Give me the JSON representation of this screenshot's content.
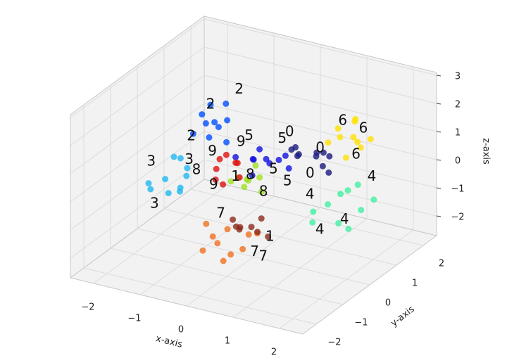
{
  "chart_data": {
    "type": "scatter3d",
    "xlabel": "x-axis",
    "ylabel": "y-axis",
    "zlabel": "z-axis",
    "xlim": [
      -2.5,
      2.5
    ],
    "ylim": [
      -2.5,
      2.5
    ],
    "zlim": [
      -2.7,
      3.1
    ],
    "xticks": [
      {
        "value": -2,
        "label": "−2"
      },
      {
        "value": -1,
        "label": "−1"
      },
      0,
      1,
      2
    ],
    "yticks": [
      {
        "value": -2,
        "label": "−2"
      },
      {
        "value": -1,
        "label": "−1"
      },
      0,
      1,
      2
    ],
    "zticks": [
      {
        "value": -2,
        "label": "−2"
      },
      {
        "value": -1,
        "label": "−1"
      },
      0,
      1,
      2,
      3
    ],
    "grid": true,
    "series": [
      {
        "color": "#ffe000",
        "x": [
          1.0,
          1.4,
          1.2,
          0.9,
          1.5,
          1.3,
          1.1,
          1.6,
          0.8,
          1.2
        ],
        "y": [
          1.5,
          1.3,
          1.8,
          1.6,
          1.4,
          1.2,
          1.9,
          1.6,
          1.4,
          1.7
        ],
        "z": [
          0.9,
          1.2,
          0.6,
          1.1,
          0.8,
          0.5,
          1.3,
          1.0,
          0.7,
          1.4
        ]
      },
      {
        "color": "#1a1a80",
        "x": [
          0.4,
          0.9,
          0.6,
          1.0,
          0.5,
          0.8,
          0.3,
          0.7,
          1.1,
          0.6
        ],
        "y": [
          1.0,
          0.8,
          1.3,
          1.1,
          0.7,
          1.2,
          0.9,
          1.4,
          0.9,
          0.6
        ],
        "z": [
          0.4,
          0.8,
          0.2,
          0.5,
          0.9,
          0.0,
          0.6,
          0.3,
          0.1,
          0.7
        ]
      },
      {
        "color": "#0050ff",
        "x": [
          -1.6,
          -1.3,
          -1.5,
          -1.2,
          -1.7,
          -1.4,
          -1.1,
          -1.8,
          -1.3,
          -1.5
        ],
        "y": [
          1.0,
          0.8,
          1.3,
          1.1,
          0.7,
          1.4,
          0.9,
          1.2,
          0.6,
          1.0
        ],
        "z": [
          0.7,
          1.0,
          0.4,
          0.9,
          0.5,
          1.2,
          0.3,
          0.8,
          0.6,
          1.4
        ]
      },
      {
        "color": "#20b8f0",
        "x": [
          -1.9,
          -1.6,
          -2.1,
          -1.5,
          -1.8,
          -2.2,
          -1.4,
          -1.7,
          -2.0,
          -1.6
        ],
        "y": [
          0,
          0.3,
          -0.2,
          0.1,
          0.4,
          -0.1,
          -0.3,
          0.2,
          0.5,
          -0.4
        ],
        "z": [
          -0.7,
          -0.4,
          -1.0,
          -0.5,
          -0.2,
          -0.9,
          -0.6,
          -1.2,
          -0.3,
          -0.8
        ]
      },
      {
        "color": "#40f0a0",
        "x": [
          1.6,
          2.0,
          1.8,
          2.2,
          1.5,
          1.9,
          2.1,
          1.7,
          2.3,
          1.4
        ],
        "y": [
          0.0,
          -0.3,
          0.4,
          0.2,
          -0.4,
          0.6,
          -0.1,
          0.3,
          0.5,
          -0.2
        ],
        "z": [
          -0.2,
          -0.5,
          0.1,
          -0.3,
          -0.6,
          0.2,
          -0.8,
          0.0,
          -0.1,
          -0.4
        ]
      },
      {
        "color": "#a0e020",
        "x": [
          -0.5,
          -0.2,
          -0.4,
          -0.1,
          -0.6,
          -0.3,
          0.0,
          -0.2
        ],
        "y": [
          0.3,
          0.1,
          0.5,
          0.4,
          0.2,
          0.6,
          0.3,
          0.0
        ],
        "z": [
          -0.3,
          -0.1,
          -0.5,
          -0.2,
          -0.4,
          0.0,
          -0.6,
          -0.3
        ]
      },
      {
        "color": "#1010e0",
        "x": [
          -0.3,
          0.1,
          -0.4,
          0.2,
          -0.1,
          0.3,
          -0.5,
          0.0,
          0.4,
          -0.2
        ],
        "y": [
          0.5,
          0.3,
          0.7,
          0.6,
          0.4,
          0.8,
          0.2,
          0.6,
          0.5,
          0.3
        ],
        "z": [
          0.3,
          0.6,
          0.1,
          0.4,
          0.8,
          0.0,
          0.5,
          0.2,
          0.7,
          -0.1
        ]
      },
      {
        "color": "#e01010",
        "x": [
          -0.8,
          -0.5,
          -0.7,
          -0.4,
          -0.9,
          -0.6,
          -0.3,
          -0.7
        ],
        "y": [
          0,
          0.2,
          -0.2,
          0.1,
          0.3,
          -0.1,
          0.0,
          0.2
        ],
        "z": [
          0.1,
          0.3,
          -0.1,
          0.4,
          0.2,
          -0.3,
          0.0,
          0.5
        ]
      },
      {
        "color": "#f07020",
        "x": [
          -0.3,
          0.2,
          -0.1,
          0.4,
          -0.5,
          0.1,
          0.3,
          -0.2,
          0.6,
          -0.4
        ],
        "y": [
          -1.0,
          -1.2,
          -0.8,
          -1.1,
          -0.9,
          -1.3,
          -0.7,
          -1.0,
          -0.9,
          -1.2
        ],
        "z": [
          -1.4,
          -1.7,
          -1.2,
          -1.5,
          -1.1,
          -1.9,
          -1.3,
          -1.6,
          -1.0,
          -1.8
        ]
      },
      {
        "color": "#8b2a1a",
        "x": [
          0.0,
          0.3,
          -0.2,
          0.4,
          0.1,
          0.6,
          -0.1,
          0.2
        ],
        "y": [
          -0.5,
          -0.6,
          -0.3,
          -0.4,
          -0.7,
          -0.5,
          -0.6,
          -0.2
        ],
        "z": [
          -1.3,
          -1.1,
          -1.5,
          -0.9,
          -1.2,
          -1.4,
          -1.0,
          -1.6
        ]
      }
    ],
    "annotations": [
      {
        "text": "6",
        "x": 1.0,
        "y": 1.6,
        "z": 1.4
      },
      {
        "text": "6",
        "x": 1.5,
        "y": 1.5,
        "z": 1.4
      },
      {
        "text": "6",
        "x": 1.4,
        "y": 1.4,
        "z": 0.5
      },
      {
        "text": "0",
        "x": 0.2,
        "y": 1.0,
        "z": 1.1
      },
      {
        "text": "0",
        "x": 0.8,
        "y": 1.1,
        "z": 0.7
      },
      {
        "text": "0",
        "x": 0.7,
        "y": 0.9,
        "z": -0.1
      },
      {
        "text": "2",
        "x": -1.5,
        "y": 1.0,
        "z": 1.4
      },
      {
        "text": "2",
        "x": -1.0,
        "y": 1.2,
        "z": 2.0
      },
      {
        "text": "2",
        "x": -1.8,
        "y": 0.8,
        "z": 0.3
      },
      {
        "text": "3",
        "x": -2.2,
        "y": 0.0,
        "z": -0.2
      },
      {
        "text": "3",
        "x": -1.9,
        "y": -0.4,
        "z": -1.3
      },
      {
        "text": "3",
        "x": -1.5,
        "y": 0.2,
        "z": 0.0
      },
      {
        "text": "4",
        "x": 2.2,
        "y": 0.6,
        "z": 0.6
      },
      {
        "text": "4",
        "x": 1.6,
        "y": -0.3,
        "z": -0.9
      },
      {
        "text": "4",
        "x": 1.9,
        "y": 0.1,
        "z": -0.7
      },
      {
        "text": "4",
        "x": 1.1,
        "y": 0.2,
        "z": -0.2
      },
      {
        "text": "8",
        "x": -0.3,
        "y": 0.4,
        "z": -0.2
      },
      {
        "text": "8",
        "x": -1.4,
        "y": 0.3,
        "z": -0.4
      },
      {
        "text": "8",
        "x": 0.1,
        "y": 0.2,
        "z": -0.5
      },
      {
        "text": "5",
        "x": -0.5,
        "y": 0.7,
        "z": 0.9
      },
      {
        "text": "5",
        "x": 0.1,
        "y": 0.9,
        "z": 0.9
      },
      {
        "text": "5",
        "x": 0.2,
        "y": 0.4,
        "z": 0.2
      },
      {
        "text": "5",
        "x": 0.5,
        "y": 0.4,
        "z": -0.1
      },
      {
        "text": "9",
        "x": -1.0,
        "y": 0.2,
        "z": 0.5
      },
      {
        "text": "9",
        "x": -0.5,
        "y": 0.4,
        "z": 0.9
      },
      {
        "text": "9",
        "x": -0.8,
        "y": -0.1,
        "z": -0.4
      },
      {
        "text": "7",
        "x": 0.6,
        "y": -1.0,
        "z": -1.6
      },
      {
        "text": "7",
        "x": 0.9,
        "y": -1.2,
        "z": -1.5
      },
      {
        "text": "7",
        "x": -0.3,
        "y": -0.7,
        "z": -0.8
      },
      {
        "text": "1",
        "x": 0.7,
        "y": -0.6,
        "z": -1.3
      },
      {
        "text": "1",
        "x": -0.5,
        "y": 0.2,
        "z": -0.2
      }
    ]
  }
}
